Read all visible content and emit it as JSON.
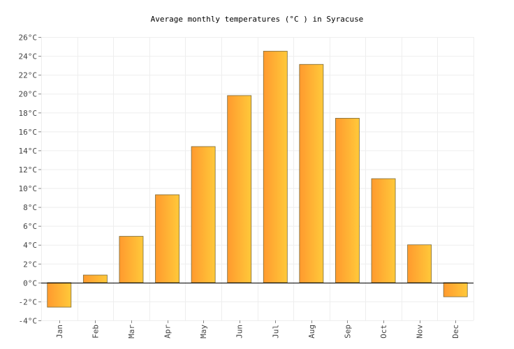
{
  "chart_data": {
    "type": "bar",
    "title": "Average monthly temperatures (°C ) in Syracuse",
    "xlabel": "",
    "ylabel": "",
    "categories": [
      "Jan",
      "Feb",
      "Mar",
      "Apr",
      "May",
      "Jun",
      "Jul",
      "Aug",
      "Sep",
      "Oct",
      "Nov",
      "Dec"
    ],
    "values": [
      -2.6,
      0.8,
      4.9,
      9.3,
      14.4,
      19.8,
      24.5,
      23.1,
      17.4,
      11.0,
      4.0,
      -1.5
    ],
    "ylim": [
      -4,
      26
    ],
    "yticks": [
      -4,
      -2,
      0,
      2,
      4,
      6,
      8,
      10,
      12,
      14,
      16,
      18,
      20,
      22,
      24,
      26
    ],
    "ytick_unit": "°C",
    "grid": true,
    "legend": "none",
    "colors": {
      "bar_start": "#ff9a2e",
      "bar_end": "#ffc93a",
      "zero_line": "#000000"
    }
  }
}
